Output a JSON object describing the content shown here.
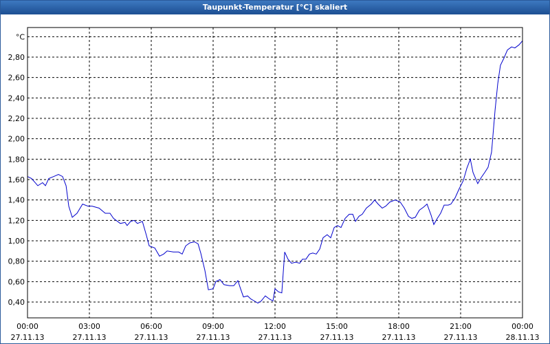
{
  "chart_data": {
    "type": "line",
    "title": "Taupunkt-Temperatur [°C] skaliert",
    "ylim": [
      0.245,
      3.09
    ],
    "yticks": [
      {
        "value": 0.4,
        "label": "0,40"
      },
      {
        "value": 0.6,
        "label": "0,60"
      },
      {
        "value": 0.8,
        "label": "0,80"
      },
      {
        "value": 1.0,
        "label": "1,00"
      },
      {
        "value": 1.2,
        "label": "1,20"
      },
      {
        "value": 1.4,
        "label": "1,40"
      },
      {
        "value": 1.6,
        "label": "1,60"
      },
      {
        "value": 1.8,
        "label": "1,80"
      },
      {
        "value": 2.0,
        "label": "2,00"
      },
      {
        "value": 2.2,
        "label": "2,20"
      },
      {
        "value": 2.4,
        "label": "2,40"
      },
      {
        "value": 2.6,
        "label": "2,60"
      },
      {
        "value": 2.8,
        "label": "2,80"
      },
      {
        "value": 3.0,
        "label": "°C"
      }
    ],
    "xlim": [
      0,
      24
    ],
    "xticks": [
      {
        "value": 0,
        "label": [
          "00:00",
          "27.11.13"
        ]
      },
      {
        "value": 3,
        "label": [
          "03:00",
          "27.11.13"
        ]
      },
      {
        "value": 6,
        "label": [
          "06:00",
          "27.11.13"
        ]
      },
      {
        "value": 9,
        "label": [
          "09:00",
          "27.11.13"
        ]
      },
      {
        "value": 12,
        "label": [
          "12:00",
          "27.11.13"
        ]
      },
      {
        "value": 15,
        "label": [
          "15:00",
          "27.11.13"
        ]
      },
      {
        "value": 18,
        "label": [
          "18:00",
          "27.11.13"
        ]
      },
      {
        "value": 21,
        "label": [
          "21:00",
          "27.11.13"
        ]
      },
      {
        "value": 24,
        "label": [
          "00:00",
          "28.11.13"
        ]
      }
    ],
    "grid": true,
    "color": "#0000cc",
    "x": [
      0,
      0.2,
      0.5,
      0.73,
      0.87,
      1.03,
      1.27,
      1.5,
      1.7,
      1.87,
      2,
      2.17,
      2.4,
      2.67,
      2.93,
      3.13,
      3.47,
      3.77,
      4,
      4.17,
      4.5,
      4.73,
      4.83,
      5,
      5.17,
      5.33,
      5.57,
      5.77,
      5.9,
      6.17,
      6.4,
      6.6,
      6.77,
      7.07,
      7.33,
      7.5,
      7.67,
      7.87,
      8.1,
      8.27,
      8.4,
      8.6,
      8.77,
      9,
      9.13,
      9.33,
      9.53,
      9.8,
      10,
      10.2,
      10.33,
      10.47,
      10.67,
      10.83,
      11,
      11.17,
      11.33,
      11.53,
      11.73,
      11.9,
      12,
      12.17,
      12.33,
      12.47,
      12.63,
      12.8,
      13,
      13.2,
      13.33,
      13.5,
      13.67,
      13.83,
      14,
      14.17,
      14.33,
      14.53,
      14.7,
      14.87,
      15.03,
      15.2,
      15.4,
      15.6,
      15.77,
      15.9,
      16.07,
      16.23,
      16.43,
      16.67,
      16.83,
      17,
      17.2,
      17.37,
      17.57,
      17.83,
      18.07,
      18.27,
      18.47,
      18.63,
      18.8,
      19,
      19.2,
      19.37,
      19.57,
      19.7,
      19.87,
      20.03,
      20.2,
      20.4,
      20.53,
      20.73,
      20.93,
      21.13,
      21.3,
      21.47,
      21.6,
      21.83,
      22,
      22.17,
      22.33,
      22.5,
      22.67,
      22.8,
      22.93,
      23.1,
      23.27,
      23.47,
      23.63,
      23.83,
      24
    ],
    "values": [
      1.63,
      1.61,
      1.54,
      1.57,
      1.54,
      1.61,
      1.63,
      1.65,
      1.63,
      1.54,
      1.34,
      1.23,
      1.27,
      1.36,
      1.34,
      1.34,
      1.32,
      1.27,
      1.27,
      1.22,
      1.17,
      1.18,
      1.15,
      1.19,
      1.2,
      1.17,
      1.19,
      1.05,
      0.95,
      0.93,
      0.85,
      0.87,
      0.9,
      0.89,
      0.89,
      0.87,
      0.95,
      0.98,
      0.99,
      0.97,
      0.88,
      0.71,
      0.52,
      0.53,
      0.6,
      0.62,
      0.57,
      0.56,
      0.56,
      0.61,
      0.53,
      0.45,
      0.46,
      0.43,
      0.41,
      0.39,
      0.41,
      0.46,
      0.43,
      0.41,
      0.53,
      0.5,
      0.49,
      0.89,
      0.82,
      0.78,
      0.79,
      0.78,
      0.82,
      0.82,
      0.87,
      0.88,
      0.87,
      0.92,
      1.03,
      1.06,
      1.03,
      1.13,
      1.15,
      1.13,
      1.22,
      1.26,
      1.26,
      1.19,
      1.24,
      1.26,
      1.32,
      1.36,
      1.4,
      1.36,
      1.32,
      1.34,
      1.38,
      1.4,
      1.38,
      1.32,
      1.24,
      1.22,
      1.23,
      1.3,
      1.33,
      1.36,
      1.25,
      1.16,
      1.22,
      1.27,
      1.35,
      1.35,
      1.36,
      1.42,
      1.51,
      1.59,
      1.71,
      1.8,
      1.67,
      1.56,
      1.62,
      1.67,
      1.72,
      1.87,
      2.28,
      2.54,
      2.72,
      2.79,
      2.87,
      2.9,
      2.89,
      2.92,
      2.96
    ]
  }
}
